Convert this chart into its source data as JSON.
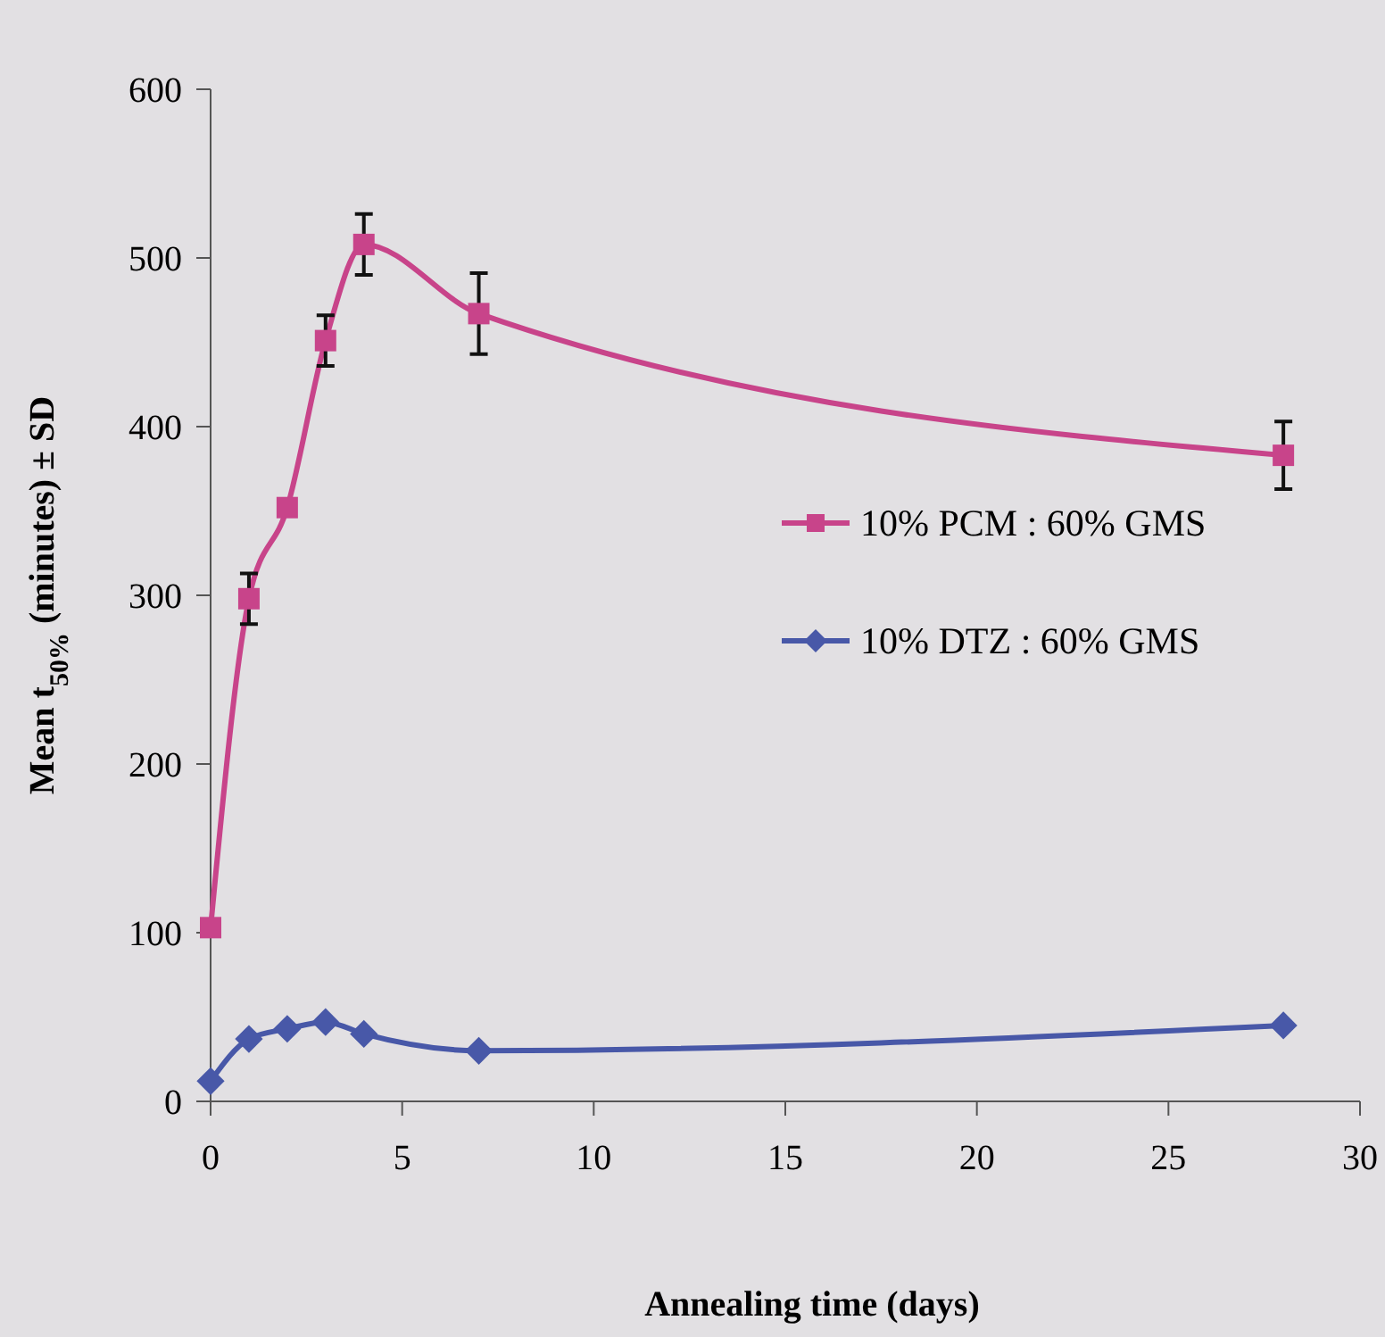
{
  "chart_data": {
    "type": "line",
    "xlabel": "Annealing time (days)",
    "ylabel": "Mean t$_{50%}$ (minutes) ± SD",
    "x": [
      0,
      1,
      2,
      3,
      4,
      7,
      28
    ],
    "series": [
      {
        "name": "10% PCM : 60% GMS",
        "color": "#c8448a",
        "marker": "square",
        "values": [
          103,
          298,
          352,
          451,
          508,
          467,
          383
        ],
        "errors": [
          null,
          15,
          null,
          15,
          18,
          24,
          20
        ]
      },
      {
        "name": "10% DTZ : 60% GMS",
        "color": "#4858a8",
        "marker": "diamond",
        "values": [
          12,
          37,
          43,
          47,
          40,
          30,
          45
        ]
      }
    ],
    "xlim": [
      0,
      30
    ],
    "xticks": [
      0,
      5,
      10,
      15,
      20,
      25,
      30
    ],
    "ylim": [
      0,
      600
    ],
    "yticks": [
      0,
      100,
      200,
      300,
      400,
      500,
      600
    ],
    "legend": "right",
    "grid": false
  }
}
